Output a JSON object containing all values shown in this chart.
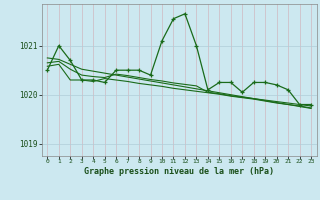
{
  "title": "Graphe pression niveau de la mer (hPa)",
  "bg_color": "#cce8f0",
  "grid_color": "#b0cdd8",
  "xlim": [
    -0.5,
    23.5
  ],
  "ylim": [
    1018.75,
    1021.85
  ],
  "yticks": [
    1019,
    1020,
    1021
  ],
  "xticks": [
    0,
    1,
    2,
    3,
    4,
    5,
    6,
    7,
    8,
    9,
    10,
    11,
    12,
    13,
    14,
    15,
    16,
    17,
    18,
    19,
    20,
    21,
    22,
    23
  ],
  "line_color": "#1a6b1a",
  "series1_x": [
    0,
    1,
    2,
    3,
    4,
    5,
    6,
    7,
    8,
    9,
    10,
    11,
    12,
    13,
    14,
    15,
    16,
    17,
    18,
    19,
    20,
    21,
    22,
    23
  ],
  "series1_y": [
    1020.5,
    1021.0,
    1020.7,
    1020.3,
    1020.3,
    1020.25,
    1020.5,
    1020.5,
    1020.5,
    1020.4,
    1021.1,
    1021.55,
    1021.65,
    1021.0,
    1020.1,
    1020.25,
    1020.25,
    1020.05,
    1020.25,
    1020.25,
    1020.2,
    1020.1,
    1019.8,
    1019.8
  ],
  "series2_x": [
    0,
    1,
    2,
    3,
    4,
    5,
    6,
    7,
    8,
    9,
    10,
    11,
    12,
    13,
    14,
    15,
    16,
    17,
    18,
    19,
    20,
    21,
    22,
    23
  ],
  "series2_y": [
    1020.75,
    1020.72,
    1020.62,
    1020.52,
    1020.48,
    1020.44,
    1020.4,
    1020.36,
    1020.32,
    1020.28,
    1020.24,
    1020.2,
    1020.16,
    1020.12,
    1020.08,
    1020.04,
    1020.0,
    1019.96,
    1019.92,
    1019.88,
    1019.84,
    1019.8,
    1019.76,
    1019.72
  ],
  "series3_x": [
    0,
    1,
    2,
    3,
    4,
    5,
    6,
    7,
    8,
    9,
    10,
    11,
    12,
    13,
    14,
    15,
    16,
    17,
    18,
    19,
    20,
    21,
    22,
    23
  ],
  "series3_y": [
    1020.65,
    1020.68,
    1020.52,
    1020.4,
    1020.37,
    1020.35,
    1020.42,
    1020.39,
    1020.35,
    1020.31,
    1020.28,
    1020.24,
    1020.21,
    1020.18,
    1020.05,
    1020.02,
    1019.98,
    1019.95,
    1019.92,
    1019.89,
    1019.86,
    1019.83,
    1019.8,
    1019.77
  ],
  "series4_x": [
    0,
    1,
    2,
    3,
    4,
    5,
    6,
    7,
    8,
    9,
    10,
    11,
    12,
    13,
    14,
    15,
    16,
    17,
    18,
    19,
    20,
    21,
    22,
    23
  ],
  "series4_y": [
    1020.58,
    1020.62,
    1020.3,
    1020.3,
    1020.27,
    1020.33,
    1020.3,
    1020.27,
    1020.23,
    1020.2,
    1020.17,
    1020.13,
    1020.1,
    1020.07,
    1020.04,
    1020.01,
    1019.97,
    1019.94,
    1019.91,
    1019.87,
    1019.83,
    1019.8,
    1019.77,
    1019.73
  ]
}
